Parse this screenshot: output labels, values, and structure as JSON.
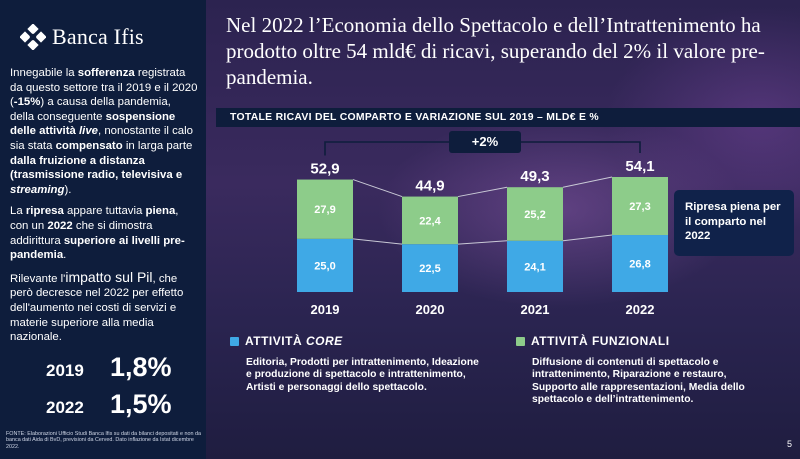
{
  "brand": {
    "name": "Banca Ifis"
  },
  "sidebar": {
    "p1": {
      "t1": "Innegabile la ",
      "b1": "sofferenza",
      "t2": " registrata da questo settore tra il 2019 e il 2020 (",
      "b2": "-15%",
      "t3": ") a causa della pandemia, della conseguente ",
      "b3": "sospensione delle attività ",
      "b3i": "live",
      "t4": ", nonostante il calo sia stata ",
      "b4": "compensato",
      "t5": " in larga parte ",
      "b5": "dalla fruizione a distanza (trasmissione radio, televisiva e ",
      "b5i": "streaming",
      "t6": ")."
    },
    "p2": {
      "t1": "La ",
      "b1": "ripresa",
      "t2": " appare tuttavia ",
      "b2": "piena",
      "t3": ", con un ",
      "b3": "2022",
      "t4": " che si dimostra addirittura ",
      "b4": "superiore ai livelli pre-pandemia",
      "t5": "."
    },
    "p3": {
      "t1": "Rilevante l'",
      "b1": "impatto sul Pil",
      "t2": ", che però decresce nel 2022 per effetto dell'aumento nei costi di servizi e materie superiore alla media nazionale."
    },
    "stats": [
      {
        "year": "2019",
        "value": "1,8%"
      },
      {
        "year": "2022",
        "value": "1,5%"
      }
    ],
    "source": "FONTE: Elaborazioni Ufficio Studi Banca Ifis su dati da bilanci depositati e non da banca dati Aida di BvD, previsioni da Cerved. Dato inflazione da Istat dicembre 2022."
  },
  "headline": "Nel 2022 l’Economia dello Spettacolo e dell’Intrattenimento ha prodotto oltre 54 mld€ di ricavi, superando del 2% il valore pre-pandemia.",
  "chart_title": "TOTALE RICAVI DEL COMPARTO E VARIAZIONE SUL 2019 – MLD€ E %",
  "badge": "+2%",
  "callout": "Ripresa piena per il comparto nel 2022",
  "legend": {
    "core": {
      "title_prefix": "ATTIVITÀ ",
      "title_em": "CORE",
      "desc": "Editoria, Prodotti per intrattenimento, Ideazione e produzione di spettacolo e intrattenimento, Artisti e personaggi dello spettacolo."
    },
    "funz": {
      "title": "ATTIVITÀ FUNZIONALI",
      "desc": "Diffusione di contenuti di spettacolo e intrattenimento, Riparazione e restauro, Supporto alle rappresentazioni, Media dello spettacolo e dell’intrattenimento."
    }
  },
  "page_number": "5",
  "colors": {
    "core": "#3fa9e6",
    "funzionali": "#8dcc8a",
    "panel": "#0e1d3c"
  },
  "chart_data": {
    "type": "bar",
    "stacked": true,
    "categories": [
      "2019",
      "2020",
      "2021",
      "2022"
    ],
    "series": [
      {
        "name": "ATTIVITÀ CORE",
        "values": [
          25.0,
          22.5,
          24.1,
          26.8
        ],
        "labels": [
          "25,0",
          "22,5",
          "24,1",
          "26,8"
        ]
      },
      {
        "name": "ATTIVITÀ FUNZIONALI",
        "values": [
          27.9,
          22.4,
          25.2,
          27.3
        ],
        "labels": [
          "27,9",
          "22,4",
          "25,2",
          "27,3"
        ]
      }
    ],
    "totals": [
      52.9,
      44.9,
      49.3,
      54.1
    ],
    "total_labels": [
      "52,9",
      "44,9",
      "49,3",
      "54,1"
    ],
    "title": "TOTALE RICAVI DEL COMPARTO E VARIAZIONE SUL 2019 – MLD€ E %",
    "xlabel": "",
    "ylabel": "",
    "ylim": [
      0,
      54.1
    ],
    "grid": false,
    "legend": "below"
  }
}
